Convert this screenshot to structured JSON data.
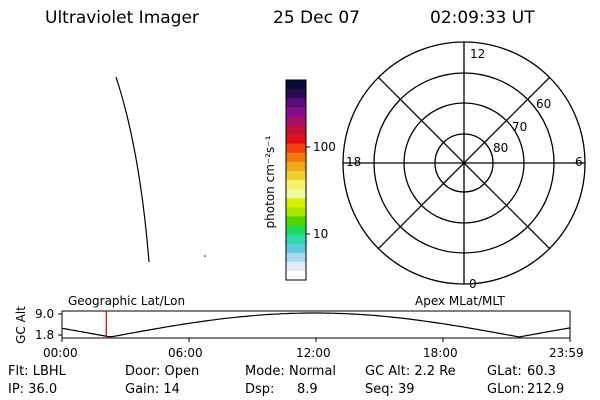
{
  "header": {
    "title": "Ultraviolet Imager",
    "date": "25 Dec 07",
    "time": "02:09:33 UT"
  },
  "colorbar": {
    "unit_label": "photon cm⁻²s⁻¹",
    "ticks": [
      "100",
      "10"
    ],
    "colors": [
      "#0b0b3a",
      "#2a0a52",
      "#5a0b7a",
      "#8a0c8c",
      "#a80f6a",
      "#c41036",
      "#e01218",
      "#f04010",
      "#f07c10",
      "#f0a818",
      "#f0d030",
      "#f8f070",
      "#f0f8a0",
      "#d8f000",
      "#a8e800",
      "#50d800",
      "#20d860",
      "#30d8b0",
      "#60c8e0",
      "#a8d8f0",
      "#e0eef4",
      "#ffffff"
    ]
  },
  "polar": {
    "mlt_labels": [
      "12",
      "18",
      "6",
      "0"
    ],
    "lat_labels": [
      "60",
      "70",
      "80"
    ]
  },
  "timeline": {
    "y_axis_label": "GC Alt",
    "y_ticks": [
      "9.0",
      "1.8"
    ],
    "left_label": "Geographic Lat/Lon",
    "right_label": "Apex MLat/MLT",
    "x_ticks": [
      "00:00",
      "06:00",
      "12:00",
      "18:00",
      "23:59"
    ],
    "current_time_fraction": 0.0873,
    "marker_color": "#cc0000"
  },
  "status": {
    "row1": {
      "flt": "Flt: LBHL",
      "door": "Door: Open",
      "mode_label": "Mode:",
      "mode_value": "Normal",
      "gc_alt": "GC Alt: 2.2 Re",
      "glat_label": "GLat:",
      "glat_value": "60.3"
    },
    "row2": {
      "ip": "IP: 36.0",
      "gain": "Gain: 14",
      "dsp_label": "Dsp:",
      "dsp_value": "8.9",
      "seq": "Seq: 39",
      "glon_label": "GLon:",
      "glon_value": "212.9"
    }
  }
}
